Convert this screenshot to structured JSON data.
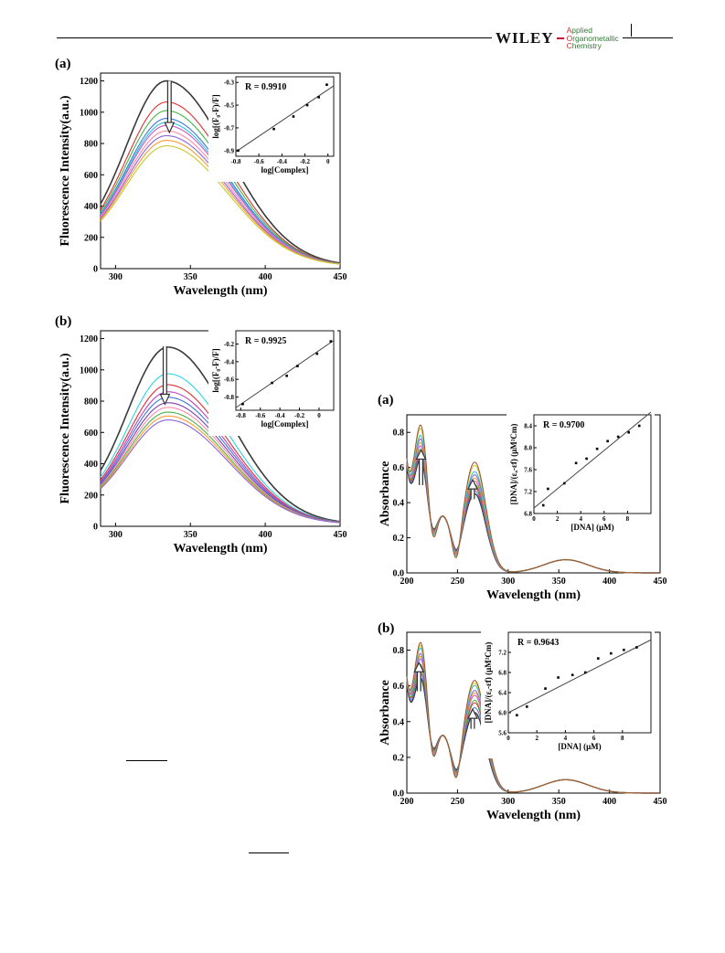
{
  "header": {
    "publisher": "WILEY",
    "journal_lines": [
      {
        "cap": "A",
        "rest": "pplied"
      },
      {
        "cap": "O",
        "rest": "rganometallic"
      },
      {
        "cap": "C",
        "rest": "hemistry"
      }
    ]
  },
  "chart_data": [
    {
      "type": "line",
      "panel_label": "(a)",
      "xlabel": "Wavelength (nm)",
      "ylabel": "Fluorescence Intensity(a.u.)",
      "xlim": [
        290,
        450
      ],
      "ylim": [
        0,
        1250
      ],
      "xticks": [
        300,
        350,
        400,
        450
      ],
      "yticks": [
        0,
        200,
        400,
        600,
        800,
        1000,
        1200
      ],
      "curve_shape": {
        "peak_x": 334,
        "left_width": 27,
        "right_width": 41,
        "baseline_left": 130,
        "baseline_right": 14
      },
      "peak_values": [
        1200,
        1065,
        1010,
        960,
        935,
        915,
        880,
        850,
        820,
        785
      ],
      "series_colors": [
        "#3a3a3a",
        "#e03030",
        "#45b545",
        "#3c78d8",
        "#29c4d9",
        "#cc55cc",
        "#ff88aa",
        "#8866dd",
        "#ff9933",
        "#c8c82a"
      ],
      "arrow": {
        "x": 336,
        "from": 1200,
        "to": 870
      },
      "inset": {
        "r_label": "R = 0.9910",
        "xlabel": "log[Complex]",
        "ylabel": "log[(F₀-F)/F]",
        "xlim": [
          -0.8,
          0.05
        ],
        "ylim": [
          -0.95,
          -0.25
        ],
        "xticks": [
          -0.8,
          -0.6,
          -0.4,
          -0.2,
          0
        ],
        "yticks": [
          -0.9,
          -0.7,
          -0.5,
          -0.3
        ],
        "points": [
          [
            -0.78,
            -0.9
          ],
          [
            -0.47,
            -0.71
          ],
          [
            -0.3,
            -0.6
          ],
          [
            -0.18,
            -0.5
          ],
          [
            -0.08,
            -0.43
          ],
          [
            -0.01,
            -0.32
          ]
        ],
        "fit": [
          [
            -0.8,
            -0.91
          ],
          [
            0.05,
            -0.33
          ]
        ]
      }
    },
    {
      "type": "line",
      "panel_label": "(b)",
      "xlabel": "Wavelength (nm)",
      "ylabel": "Fluorescence Intensity(a.u.)",
      "xlim": [
        290,
        450
      ],
      "ylim": [
        0,
        1250
      ],
      "xticks": [
        300,
        350,
        400,
        450
      ],
      "yticks": [
        0,
        200,
        400,
        600,
        800,
        1000,
        1200
      ],
      "curve_shape": {
        "peak_x": 335,
        "left_width": 27,
        "right_width": 40,
        "baseline_left": 95,
        "baseline_right": 12
      },
      "peak_values": [
        1145,
        975,
        905,
        860,
        825,
        790,
        760,
        730,
        705,
        680
      ],
      "series_colors": [
        "#3a3a3a",
        "#29d4e6",
        "#e03030",
        "#c040c0",
        "#3c78d8",
        "#7a3fb0",
        "#ff88aa",
        "#45b545",
        "#ff9933",
        "#8866dd"
      ],
      "arrow": {
        "x": 333,
        "from": 1150,
        "to": 780
      },
      "inset": {
        "r_label": "R = 0.9925",
        "xlabel": "log[Complex]",
        "ylabel": "log[(F₀-F)/F]",
        "xlim": [
          -0.85,
          0.15
        ],
        "ylim": [
          -0.95,
          -0.05
        ],
        "xticks": [
          -0.8,
          -0.6,
          -0.4,
          -0.2,
          0
        ],
        "yticks": [
          -0.8,
          -0.6,
          -0.4,
          -0.2
        ],
        "points": [
          [
            -0.78,
            -0.88
          ],
          [
            -0.48,
            -0.64
          ],
          [
            -0.33,
            -0.56
          ],
          [
            -0.22,
            -0.45
          ],
          [
            -0.02,
            -0.31
          ],
          [
            0.12,
            -0.17
          ]
        ],
        "fit": [
          [
            -0.85,
            -0.92
          ],
          [
            0.15,
            -0.16
          ]
        ]
      }
    },
    {
      "type": "line",
      "panel_label": "(a)",
      "xlabel": "Wavelength (nm)",
      "ylabel": "Absorbance",
      "xlim": [
        200,
        450
      ],
      "ylim": [
        0,
        0.9
      ],
      "xticks": [
        200,
        250,
        300,
        350,
        400,
        450
      ],
      "yticks": [
        0.0,
        0.2,
        0.4,
        0.6,
        0.8
      ],
      "yticks_labels": [
        "0.0",
        "0.2",
        "0.4",
        "0.6",
        "0.8"
      ],
      "series_colors": [
        "#3a3a3a",
        "#3c78d8",
        "#e03030",
        "#45b545",
        "#cc55cc",
        "#ff9933",
        "#8866dd",
        "#29c4d9",
        "#c8c82a",
        "#a0522d"
      ],
      "peak_heights": [
        0.43,
        0.44,
        0.45,
        0.46,
        0.47,
        0.48,
        0.49,
        0.5,
        0.52,
        0.53
      ],
      "arrows": [
        {
          "x": 214,
          "from": 0.5,
          "to": 0.7
        },
        {
          "x": 265,
          "from": 0.42,
          "to": 0.53
        }
      ],
      "inset": {
        "r_label": "R = 0.9700",
        "xlabel": "[DNA] (μM)",
        "ylabel": "[DNA]/(εₐ-εf) (μM²Cm)",
        "xlim": [
          0,
          10
        ],
        "ylim": [
          6.8,
          8.6
        ],
        "xticks": [
          0,
          2,
          4,
          6,
          8
        ],
        "yticks": [
          6.8,
          7.2,
          7.6,
          8.0,
          8.4
        ],
        "yticks_labels": [
          "6.8",
          "7.2",
          "7.6",
          "8.0",
          "8.4"
        ],
        "points": [
          [
            0.8,
            6.95
          ],
          [
            1.2,
            7.25
          ],
          [
            2.6,
            7.35
          ],
          [
            3.6,
            7.72
          ],
          [
            4.5,
            7.8
          ],
          [
            5.4,
            7.98
          ],
          [
            6.3,
            8.12
          ],
          [
            7.2,
            8.2
          ],
          [
            8.1,
            8.28
          ],
          [
            9.0,
            8.4
          ]
        ],
        "fit": [
          [
            0,
            6.9
          ],
          [
            10,
            8.65
          ]
        ]
      }
    },
    {
      "type": "line",
      "panel_label": "(b)",
      "xlabel": "Wavelength (nm)",
      "ylabel": "Absorbance",
      "xlim": [
        200,
        450
      ],
      "ylim": [
        0,
        0.9
      ],
      "xticks": [
        200,
        250,
        300,
        350,
        400,
        450
      ],
      "yticks": [
        0.0,
        0.2,
        0.4,
        0.6,
        0.8
      ],
      "yticks_labels": [
        "0.0",
        "0.2",
        "0.4",
        "0.6",
        "0.8"
      ],
      "series_colors": [
        "#3a3a3a",
        "#3c78d8",
        "#e03030",
        "#45b545",
        "#cc55cc",
        "#ff9933",
        "#8866dd",
        "#29c4d9",
        "#c8c82a",
        "#a0522d"
      ],
      "peak_heights": [
        0.33,
        0.35,
        0.37,
        0.38,
        0.4,
        0.41,
        0.42,
        0.44,
        0.45,
        0.46
      ],
      "arrows": [
        {
          "x": 212,
          "from": 0.57,
          "to": 0.73
        },
        {
          "x": 265,
          "from": 0.36,
          "to": 0.47
        }
      ],
      "inset": {
        "r_label": "R = 0.9643",
        "xlabel": "[DNA] (μM)",
        "ylabel": "[DNA]/(εₐ-εf) (μM²Cm)",
        "xlim": [
          0,
          10
        ],
        "ylim": [
          5.6,
          7.6
        ],
        "xticks": [
          0,
          2,
          4,
          6,
          8
        ],
        "yticks": [
          5.6,
          6.0,
          6.4,
          6.8,
          7.2
        ],
        "yticks_labels": [
          "5.6",
          "6.0",
          "6.4",
          "6.8",
          "7.2"
        ],
        "points": [
          [
            0.6,
            5.95
          ],
          [
            1.3,
            6.12
          ],
          [
            2.6,
            6.48
          ],
          [
            3.5,
            6.7
          ],
          [
            4.5,
            6.75
          ],
          [
            5.4,
            6.8
          ],
          [
            6.3,
            7.08
          ],
          [
            7.2,
            7.18
          ],
          [
            8.1,
            7.25
          ],
          [
            9.0,
            7.3
          ]
        ],
        "fit": [
          [
            0,
            6.0
          ],
          [
            10,
            7.45
          ]
        ]
      }
    }
  ]
}
